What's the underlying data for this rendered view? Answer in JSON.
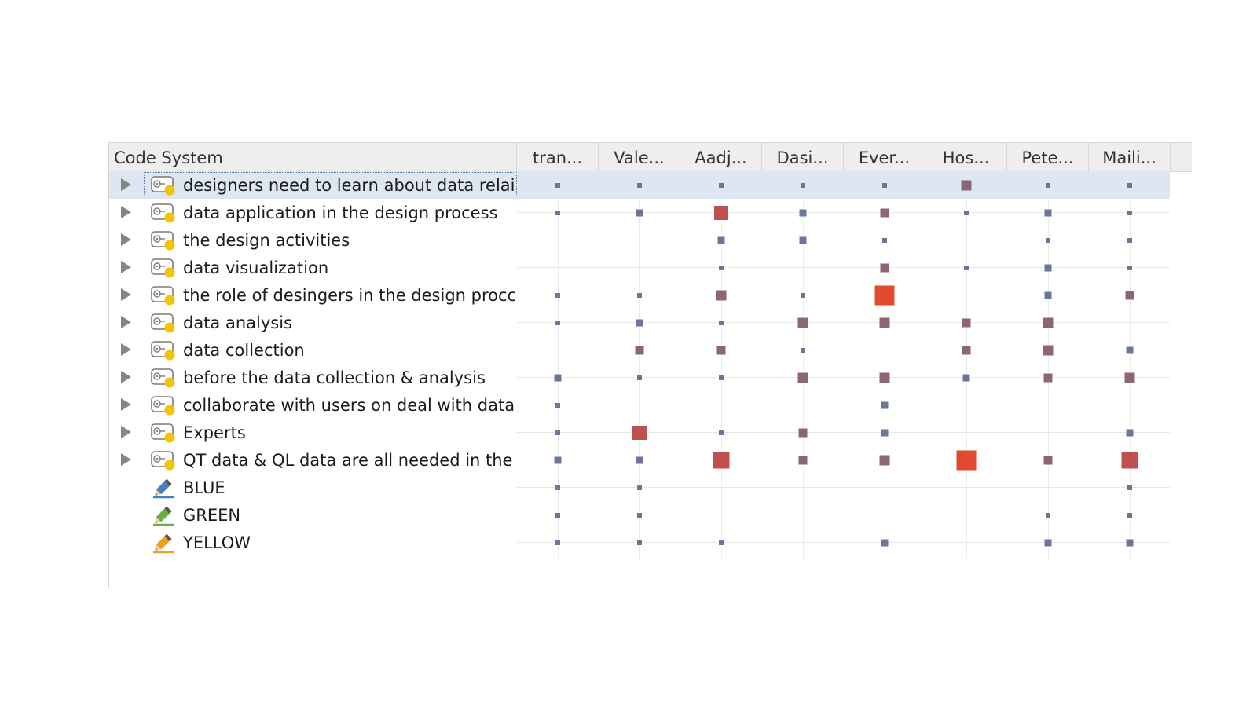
{
  "header": {
    "code_system_label": "Code System",
    "columns": [
      "tran...",
      "Vale...",
      "Aadj...",
      "Dasi...",
      "Ever...",
      "Hos...",
      "Pete...",
      "Maili..."
    ]
  },
  "colors": {
    "header_bg": "#eeeeee",
    "selected_row_bg": "#dde6f1",
    "small_marker": "#6a7798",
    "medium_marker": "#8c6577",
    "large_marker": "#c0504d",
    "max_marker": "#e04a2f",
    "code_icon_dot": "#f5c400",
    "pencil_blue": "#4a7fc1",
    "pencil_green": "#6aae3d",
    "pencil_yellow": "#f0a11c"
  },
  "rows": [
    {
      "label": "designers need to learn about data relai",
      "type": "code",
      "selected": true,
      "cells": [
        1,
        1,
        1,
        1,
        1,
        4,
        1,
        1
      ]
    },
    {
      "label": "data application in the design process",
      "type": "code",
      "cells": [
        1,
        2,
        5,
        2,
        3,
        1,
        2,
        1
      ]
    },
    {
      "label": "the design activities",
      "type": "code",
      "cells": [
        0,
        0,
        2,
        2,
        1,
        0,
        1,
        1
      ]
    },
    {
      "label": "data visualization",
      "type": "code",
      "cells": [
        0,
        0,
        1,
        0,
        3,
        1,
        2,
        1
      ]
    },
    {
      "label": "the role of desingers in the design procс",
      "type": "code",
      "cells": [
        1,
        1,
        4,
        1,
        7,
        0,
        2,
        3
      ]
    },
    {
      "label": "data analysis",
      "type": "code",
      "cells": [
        1,
        2,
        1,
        4,
        4,
        3,
        4,
        0
      ]
    },
    {
      "label": "data collection",
      "type": "code",
      "cells": [
        0,
        3,
        3,
        1,
        0,
        3,
        4,
        2
      ]
    },
    {
      "label": "before the data collection & analysis",
      "type": "code",
      "cells": [
        2,
        1,
        1,
        4,
        4,
        2,
        3,
        4
      ]
    },
    {
      "label": "collaborate with users on deal with data",
      "type": "code",
      "cells": [
        1,
        0,
        0,
        0,
        2,
        0,
        0,
        0
      ]
    },
    {
      "label": "Experts",
      "type": "code",
      "cells": [
        1,
        5,
        1,
        3,
        2,
        0,
        0,
        2
      ]
    },
    {
      "label": "QT data & QL data are all needed in the",
      "type": "code",
      "cells": [
        2,
        2,
        6,
        3,
        4,
        7,
        3,
        6
      ]
    },
    {
      "label": "BLUE",
      "type": "color",
      "color_key": "pencil_blue",
      "cells": [
        1,
        1,
        0,
        0,
        0,
        0,
        0,
        1
      ]
    },
    {
      "label": "GREEN",
      "type": "color",
      "color_key": "pencil_green",
      "cells": [
        1,
        1,
        0,
        0,
        0,
        0,
        1,
        1
      ]
    },
    {
      "label": "YELLOW",
      "type": "color",
      "color_key": "pencil_yellow",
      "cells": [
        1,
        1,
        1,
        0,
        2,
        0,
        2,
        2
      ]
    }
  ]
}
